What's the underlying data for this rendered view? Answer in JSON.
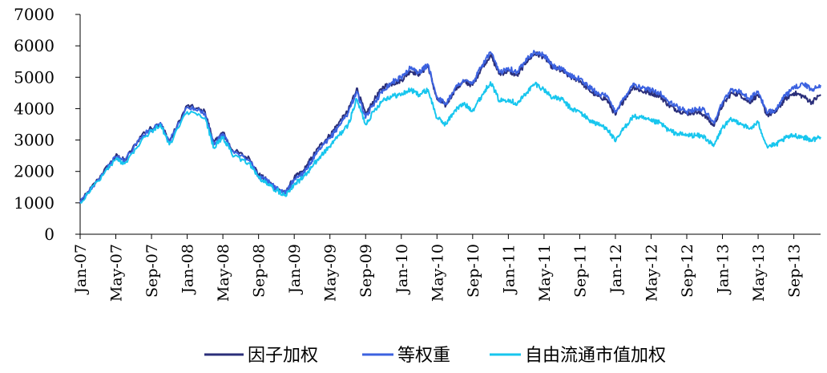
{
  "chart_data": {
    "type": "line",
    "title": "",
    "xlabel": "",
    "ylabel": "",
    "ylim": [
      0,
      7000
    ],
    "yticks": [
      0,
      1000,
      2000,
      3000,
      4000,
      5000,
      6000,
      7000
    ],
    "xlim": [
      "2007-01",
      "2013-12"
    ],
    "xticks": [
      "Jan-07",
      "May-07",
      "Sep-07",
      "Jan-08",
      "May-08",
      "Sep-08",
      "Jan-09",
      "May-09",
      "Sep-09",
      "Jan-10",
      "May-10",
      "Sep-10",
      "Jan-11",
      "May-11",
      "Sep-11",
      "Jan-12",
      "May-12",
      "Sep-12",
      "Jan-13",
      "May-13",
      "Sep-13"
    ],
    "grid": false,
    "legend": "bottom",
    "x": [
      "2007-01",
      "2007-03",
      "2007-05",
      "2007-06",
      "2007-08",
      "2007-10",
      "2007-11",
      "2008-01",
      "2008-03",
      "2008-04",
      "2008-05",
      "2008-06",
      "2008-08",
      "2008-09",
      "2008-10",
      "2008-11",
      "2008-12",
      "2009-01",
      "2009-02",
      "2009-03",
      "2009-04",
      "2009-05",
      "2009-06",
      "2009-07",
      "2009-08",
      "2009-09",
      "2009-10",
      "2009-11",
      "2009-12",
      "2010-01",
      "2010-02",
      "2010-03",
      "2010-04",
      "2010-05",
      "2010-06",
      "2010-07",
      "2010-08",
      "2010-09",
      "2010-10",
      "2010-11",
      "2010-12",
      "2011-01",
      "2011-02",
      "2011-03",
      "2011-04",
      "2011-05",
      "2011-06",
      "2011-07",
      "2011-08",
      "2011-09",
      "2011-10",
      "2011-11",
      "2011-12",
      "2012-01",
      "2012-02",
      "2012-03",
      "2012-04",
      "2012-05",
      "2012-06",
      "2012-07",
      "2012-08",
      "2012-09",
      "2012-10",
      "2012-11",
      "2012-12",
      "2013-01",
      "2013-02",
      "2013-03",
      "2013-04",
      "2013-05",
      "2013-06",
      "2013-07",
      "2013-08",
      "2013-09",
      "2013-10",
      "2013-11",
      "2013-12"
    ],
    "series": [
      {
        "name": "因子加权",
        "color": "#2b2f7a",
        "values": [
          1000,
          1750,
          2500,
          2350,
          3200,
          3550,
          2950,
          4100,
          3900,
          2900,
          3250,
          2700,
          2400,
          1900,
          1700,
          1450,
          1300,
          1800,
          2000,
          2450,
          2850,
          3150,
          3550,
          3900,
          4650,
          3800,
          4300,
          4700,
          4800,
          4900,
          5200,
          5100,
          5350,
          4300,
          4100,
          4600,
          4850,
          4750,
          5300,
          5700,
          5100,
          5200,
          5050,
          5500,
          5750,
          5650,
          5300,
          5200,
          5000,
          4900,
          4600,
          4400,
          4300,
          3800,
          4300,
          4700,
          4550,
          4500,
          4400,
          4100,
          3950,
          3850,
          3900,
          3800,
          3450,
          4100,
          4500,
          4450,
          4200,
          4450,
          3800,
          3900,
          4300,
          4500,
          4400,
          4200,
          4450
        ]
      },
      {
        "name": "等权重",
        "color": "#3c62e0",
        "values": [
          1000,
          1750,
          2450,
          2350,
          3150,
          3550,
          2950,
          4050,
          3850,
          2850,
          3200,
          2650,
          2350,
          1850,
          1700,
          1450,
          1300,
          1750,
          1950,
          2350,
          2750,
          3050,
          3450,
          3850,
          4550,
          3700,
          4200,
          4600,
          4850,
          5000,
          5300,
          5150,
          5400,
          4350,
          4150,
          4650,
          4900,
          4800,
          5350,
          5800,
          5150,
          5300,
          5150,
          5600,
          5800,
          5700,
          5350,
          5250,
          5050,
          4950,
          4700,
          4500,
          4400,
          3900,
          4350,
          4800,
          4650,
          4600,
          4500,
          4200,
          4050,
          3900,
          4000,
          3950,
          3550,
          4200,
          4600,
          4550,
          4300,
          4550,
          3850,
          4000,
          4400,
          4650,
          4800,
          4600,
          4750
        ]
      },
      {
        "name": "自由流通市值加权",
        "color": "#18c6ee",
        "values": [
          1000,
          1700,
          2400,
          2250,
          3050,
          3500,
          2850,
          3900,
          3700,
          2750,
          3100,
          2550,
          2250,
          1800,
          1600,
          1400,
          1250,
          1600,
          1800,
          2150,
          2500,
          2800,
          3150,
          3450,
          4300,
          3500,
          3950,
          4300,
          4400,
          4450,
          4600,
          4450,
          4600,
          3700,
          3500,
          3950,
          4150,
          3950,
          4400,
          4850,
          4250,
          4300,
          4150,
          4500,
          4800,
          4600,
          4350,
          4300,
          4000,
          3900,
          3650,
          3500,
          3400,
          2950,
          3400,
          3750,
          3700,
          3600,
          3550,
          3300,
          3200,
          3150,
          3150,
          3100,
          2800,
          3400,
          3650,
          3550,
          3350,
          3550,
          2800,
          2850,
          3050,
          3150,
          3100,
          3000,
          3100
        ]
      }
    ]
  }
}
